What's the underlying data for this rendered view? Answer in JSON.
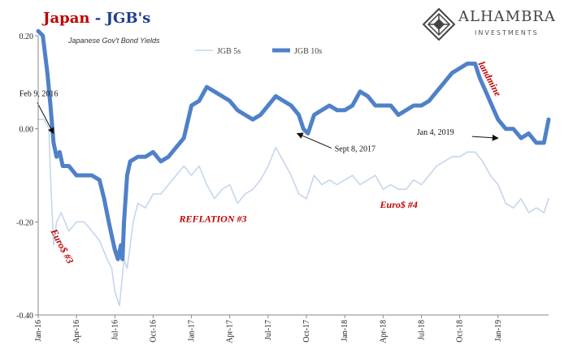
{
  "title": {
    "part1": "Japan",
    "part2": " - JGB's"
  },
  "subtitle": "Japanese Gov't Bond Yields",
  "logo": {
    "name": "ALHAMBRA",
    "sub": "INVESTMENTS"
  },
  "colors": {
    "jgb5": "#c5d6ee",
    "jgb10": "#4f81c9",
    "title_red": "#c00000",
    "title_blue": "#1f3f8f",
    "annotation_red": "#c00000"
  },
  "chart_data": {
    "type": "line",
    "ylim": [
      -0.4,
      0.2
    ],
    "yticks": [
      "0.20",
      "0.00",
      "-0.20",
      "-0.40"
    ],
    "yticks_values": [
      0.2,
      0.0,
      -0.2,
      -0.4
    ],
    "xticks": [
      "Jan-16",
      "Apr-16",
      "Jul-16",
      "Oct-16",
      "Jan-17",
      "Apr-17",
      "Jul-17",
      "Oct-17",
      "Jan-18",
      "Apr-18",
      "Jul-18",
      "Oct-18",
      "Jan-19"
    ],
    "xticks_values": [
      2016.0,
      2016.25,
      2016.5,
      2016.75,
      2017.0,
      2017.25,
      2017.5,
      2017.75,
      2018.0,
      2018.25,
      2018.5,
      2018.75,
      2019.0
    ],
    "xlim": [
      2016.0,
      2019.33
    ],
    "legend": {
      "placement": "top-center"
    },
    "series": [
      {
        "name": "JGB 5s",
        "color": "#c5d6ee",
        "x": [
          2016.0,
          2016.04,
          2016.07,
          2016.08,
          2016.1,
          2016.12,
          2016.15,
          2016.2,
          2016.25,
          2016.3,
          2016.35,
          2016.4,
          2016.45,
          2016.48,
          2016.5,
          2016.53,
          2016.56,
          2016.58,
          2016.6,
          2016.62,
          2016.65,
          2016.7,
          2016.75,
          2016.8,
          2016.85,
          2016.9,
          2016.95,
          2017.0,
          2017.05,
          2017.1,
          2017.15,
          2017.2,
          2017.25,
          2017.3,
          2017.35,
          2017.4,
          2017.45,
          2017.5,
          2017.55,
          2017.6,
          2017.65,
          2017.7,
          2017.75,
          2017.8,
          2017.85,
          2017.9,
          2017.95,
          2018.0,
          2018.05,
          2018.1,
          2018.15,
          2018.2,
          2018.25,
          2018.3,
          2018.35,
          2018.4,
          2018.45,
          2018.5,
          2018.55,
          2018.6,
          2018.65,
          2018.7,
          2018.75,
          2018.8,
          2018.85,
          2018.9,
          2018.95,
          2019.0,
          2019.05,
          2019.1,
          2019.15,
          2019.2,
          2019.25,
          2019.3,
          2019.33
        ],
        "values": [
          0.02,
          0.02,
          0.0,
          -0.1,
          -0.25,
          -0.2,
          -0.18,
          -0.22,
          -0.2,
          -0.2,
          -0.22,
          -0.24,
          -0.28,
          -0.3,
          -0.35,
          -0.38,
          -0.28,
          -0.3,
          -0.25,
          -0.2,
          -0.16,
          -0.17,
          -0.14,
          -0.14,
          -0.12,
          -0.1,
          -0.08,
          -0.1,
          -0.08,
          -0.12,
          -0.15,
          -0.13,
          -0.12,
          -0.16,
          -0.14,
          -0.13,
          -0.11,
          -0.08,
          -0.04,
          -0.07,
          -0.1,
          -0.14,
          -0.15,
          -0.1,
          -0.12,
          -0.11,
          -0.12,
          -0.11,
          -0.1,
          -0.12,
          -0.11,
          -0.1,
          -0.13,
          -0.12,
          -0.13,
          -0.13,
          -0.11,
          -0.12,
          -0.1,
          -0.08,
          -0.07,
          -0.06,
          -0.06,
          -0.05,
          -0.05,
          -0.07,
          -0.1,
          -0.12,
          -0.16,
          -0.17,
          -0.15,
          -0.18,
          -0.17,
          -0.18,
          -0.15
        ]
      },
      {
        "name": "JGB 10s",
        "color": "#4f81c9",
        "x": [
          2016.0,
          2016.03,
          2016.06,
          2016.08,
          2016.1,
          2016.12,
          2016.14,
          2016.16,
          2016.2,
          2016.25,
          2016.3,
          2016.35,
          2016.4,
          2016.43,
          2016.46,
          2016.48,
          2016.5,
          2016.52,
          2016.54,
          2016.55,
          2016.56,
          2016.58,
          2016.6,
          2016.65,
          2016.7,
          2016.75,
          2016.8,
          2016.85,
          2016.9,
          2016.95,
          2017.0,
          2017.05,
          2017.1,
          2017.15,
          2017.2,
          2017.25,
          2017.3,
          2017.35,
          2017.4,
          2017.45,
          2017.5,
          2017.55,
          2017.6,
          2017.65,
          2017.7,
          2017.73,
          2017.76,
          2017.8,
          2017.85,
          2017.9,
          2017.95,
          2018.0,
          2018.05,
          2018.1,
          2018.15,
          2018.2,
          2018.25,
          2018.3,
          2018.35,
          2018.4,
          2018.45,
          2018.5,
          2018.55,
          2018.6,
          2018.65,
          2018.7,
          2018.75,
          2018.8,
          2018.85,
          2018.88,
          2018.92,
          2018.96,
          2019.0,
          2019.05,
          2019.1,
          2019.15,
          2019.2,
          2019.25,
          2019.3,
          2019.33
        ],
        "values": [
          0.21,
          0.2,
          0.12,
          0.05,
          -0.03,
          -0.06,
          -0.05,
          -0.08,
          -0.08,
          -0.1,
          -0.1,
          -0.1,
          -0.11,
          -0.15,
          -0.2,
          -0.23,
          -0.26,
          -0.28,
          -0.25,
          -0.28,
          -0.2,
          -0.1,
          -0.07,
          -0.06,
          -0.06,
          -0.05,
          -0.07,
          -0.06,
          -0.04,
          -0.02,
          0.05,
          0.06,
          0.09,
          0.08,
          0.07,
          0.06,
          0.04,
          0.03,
          0.02,
          0.03,
          0.05,
          0.07,
          0.06,
          0.05,
          0.03,
          0.0,
          -0.01,
          0.03,
          0.04,
          0.05,
          0.04,
          0.04,
          0.05,
          0.08,
          0.07,
          0.05,
          0.05,
          0.05,
          0.03,
          0.04,
          0.05,
          0.05,
          0.06,
          0.08,
          0.1,
          0.12,
          0.13,
          0.14,
          0.14,
          0.11,
          0.08,
          0.05,
          0.02,
          0.0,
          0.0,
          -0.02,
          -0.01,
          -0.03,
          -0.03,
          0.02
        ]
      }
    ],
    "annotations": [
      {
        "text": "Feb 9, 2016",
        "x": 2016.1,
        "y": -0.01,
        "color": "#111111",
        "rotate": 0,
        "italic": false,
        "bold": false
      },
      {
        "text": "Sept 8, 2017",
        "x": 2017.69,
        "y": -0.01,
        "color": "#111111",
        "rotate": 0,
        "italic": false,
        "bold": false
      },
      {
        "text": "Jan 4, 2019",
        "x": 2019.0,
        "y": -0.02,
        "color": "#111111",
        "rotate": 0,
        "italic": false,
        "bold": false
      },
      {
        "text": "Euro$ #3",
        "x": 2016.08,
        "y": -0.22,
        "color": "#c00000",
        "rotate": 62,
        "italic": true,
        "bold": true
      },
      {
        "text": "REFLATION #3",
        "x": 2016.92,
        "y": -0.2,
        "color": "#c00000",
        "rotate": 0,
        "italic": true,
        "bold": true
      },
      {
        "text": "Euro$ #4",
        "x": 2018.23,
        "y": -0.17,
        "color": "#c00000",
        "rotate": 0,
        "italic": true,
        "bold": true
      },
      {
        "text": "landmine",
        "x": 2018.87,
        "y": 0.14,
        "color": "#c00000",
        "rotate": 62,
        "italic": true,
        "bold": true
      }
    ]
  }
}
